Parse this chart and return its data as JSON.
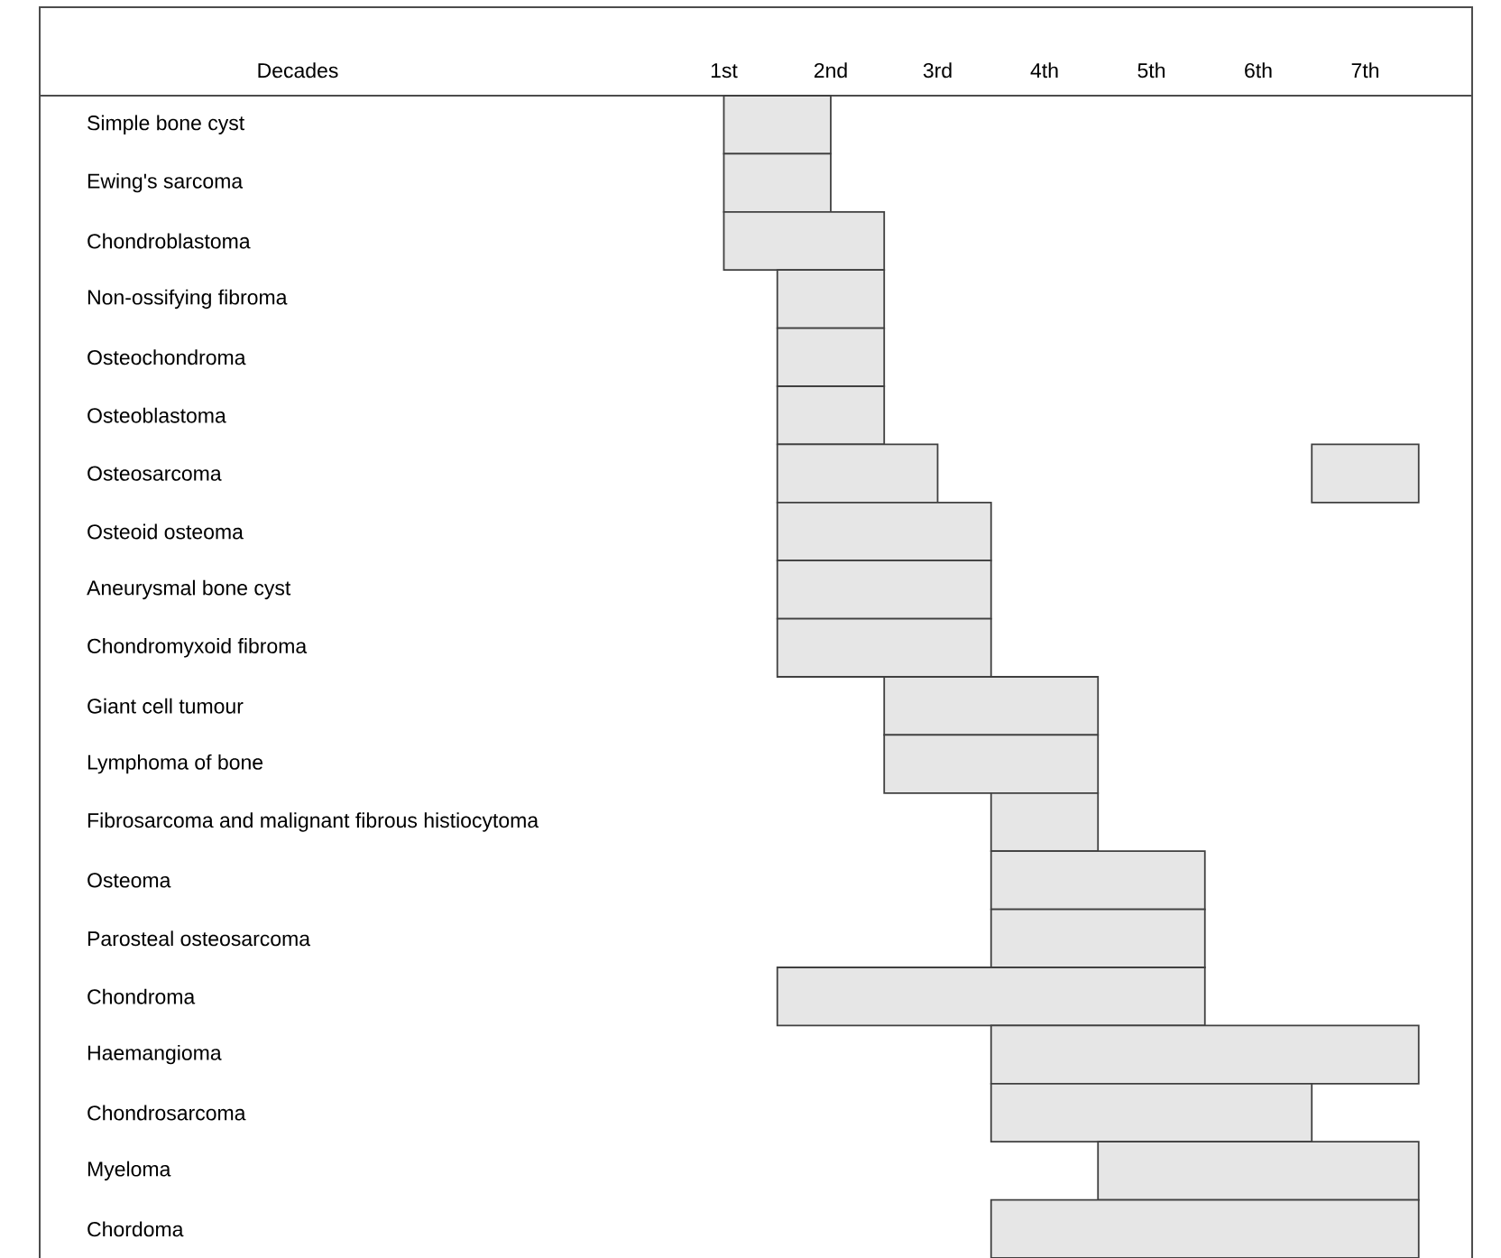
{
  "chart_data": {
    "type": "bar",
    "orientation": "horizontal",
    "xlabel": "Decades",
    "categories": [
      "Simple bone cyst",
      "Ewing's sarcoma",
      "Chondroblastoma",
      "Non-ossifying fibroma",
      "Osteochondroma",
      "Osteoblastoma",
      "Osteosarcoma",
      "Osteoid osteoma",
      "Aneurysmal bone cyst",
      "Chondromyxoid fibroma",
      "Giant cell tumour",
      "Lymphoma of bone",
      "Fibrosarcoma and malignant fibrous histiocytoma",
      "Osteoma",
      "Parosteal osteosarcoma",
      "Chondroma",
      "Haemangioma",
      "Chondrosarcoma",
      "Myeloma",
      "Chordoma"
    ],
    "series": [
      {
        "color": "#e6e6e6",
        "base": [
          1.0,
          1.0,
          1.0,
          1.5,
          1.5,
          1.5,
          1.5,
          1.5,
          1.5,
          1.5,
          2.5,
          2.5,
          3.5,
          3.5,
          3.5,
          1.5,
          3.5,
          3.5,
          4.5,
          3.5
        ],
        "values": [
          1.0,
          1.0,
          1.5,
          1.0,
          1.0,
          1.0,
          1.5,
          2.0,
          2.0,
          2.0,
          2.0,
          2.0,
          1.0,
          2.0,
          2.0,
          4.0,
          4.0,
          3.0,
          3.0,
          4.0
        ]
      },
      {
        "color": "#e6e6e6",
        "base": [
          null,
          null,
          null,
          null,
          null,
          null,
          6.5,
          null,
          null,
          null,
          null,
          null,
          null,
          null,
          null,
          null,
          null,
          null,
          null,
          null
        ],
        "values": [
          null,
          null,
          null,
          null,
          null,
          null,
          1.0,
          null,
          null,
          null,
          null,
          null,
          null,
          null,
          null,
          null,
          null,
          null,
          null,
          null
        ]
      }
    ],
    "xlim": [
      -5.4,
      8
    ],
    "xticks": [
      {
        "value": 1,
        "label": "1st"
      },
      {
        "value": 2,
        "label": "2nd"
      },
      {
        "value": 3,
        "label": "3rd"
      },
      {
        "value": 4,
        "label": "4th"
      },
      {
        "value": 5,
        "label": "5th"
      },
      {
        "value": 6,
        "label": "6th"
      },
      {
        "value": 7,
        "label": "7th"
      }
    ],
    "grid": false
  }
}
